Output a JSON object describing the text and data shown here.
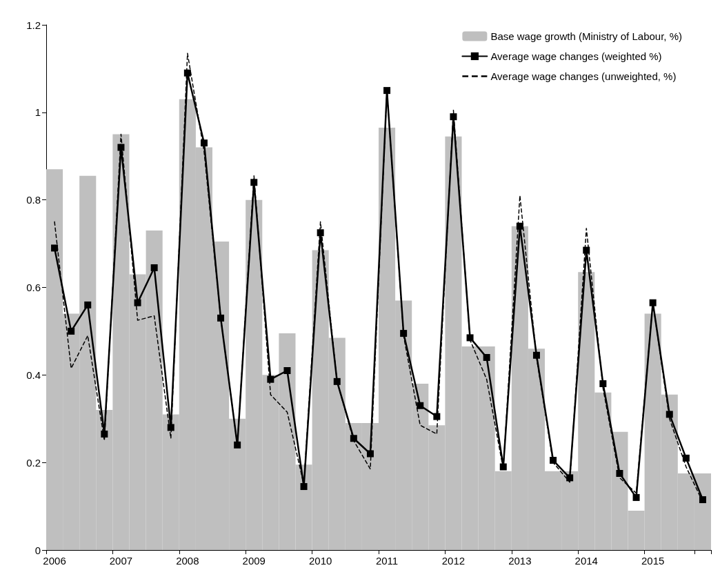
{
  "chart_data": {
    "type": "bar",
    "categories": [
      "2006",
      null,
      null,
      null,
      "2007",
      null,
      null,
      null,
      "2008",
      null,
      null,
      null,
      "2009",
      null,
      null,
      null,
      "2010",
      null,
      null,
      null,
      "2011",
      null,
      null,
      null,
      "2012",
      null,
      null,
      null,
      "2013",
      null,
      null,
      null,
      "2014",
      null,
      null,
      null,
      "2015",
      null,
      null,
      null
    ],
    "series": [
      {
        "name": "Base wage growth (Ministry of Labour, %)",
        "color": "#bfbfbf",
        "values": [
          0.87,
          0.54,
          0.855,
          0.32,
          0.95,
          0.63,
          0.73,
          0.31,
          1.03,
          0.92,
          0.705,
          0.3,
          0.8,
          0.4,
          0.495,
          0.195,
          0.685,
          0.485,
          0.29,
          0.29,
          0.965,
          0.57,
          0.38,
          0.285,
          0.945,
          0.465,
          0.465,
          0.18,
          0.74,
          0.46,
          0.18,
          0.18,
          0.635,
          0.36,
          0.27,
          0.09,
          0.54,
          0.355,
          0.175,
          0.175
        ]
      },
      {
        "name": "Average wage changes (weighted %)",
        "type": "line",
        "color": "#000000",
        "marker": "square",
        "line_style": "solid",
        "values": [
          0.69,
          0.5,
          0.56,
          0.265,
          0.92,
          0.565,
          0.645,
          0.28,
          1.09,
          0.93,
          0.53,
          0.24,
          0.84,
          0.39,
          0.41,
          0.145,
          0.725,
          0.385,
          0.255,
          0.22,
          1.05,
          0.495,
          0.33,
          0.305,
          0.99,
          0.485,
          0.44,
          0.19,
          0.74,
          0.445,
          0.205,
          0.165,
          0.685,
          0.38,
          0.175,
          0.12,
          0.565,
          0.31,
          0.21,
          0.115
        ]
      },
      {
        "name": "Average wage changes (unweighted, %)",
        "type": "line",
        "color": "#000000",
        "marker": "none",
        "line_style": "dashed",
        "values": [
          0.75,
          0.415,
          0.49,
          0.25,
          0.95,
          0.525,
          0.535,
          0.255,
          1.135,
          0.91,
          0.53,
          0.24,
          0.855,
          0.355,
          0.315,
          0.15,
          0.75,
          0.385,
          0.25,
          0.185,
          1.05,
          0.49,
          0.285,
          0.265,
          1.005,
          0.48,
          0.39,
          0.185,
          0.81,
          0.44,
          0.2,
          0.155,
          0.735,
          0.37,
          0.165,
          0.13,
          0.565,
          0.3,
          0.19,
          0.11
        ]
      }
    ],
    "ylim": [
      0,
      1.2
    ],
    "yticks": [
      0,
      0.2,
      0.4,
      0.6,
      0.8,
      1,
      1.2
    ],
    "grid": false,
    "legend": "top right"
  }
}
